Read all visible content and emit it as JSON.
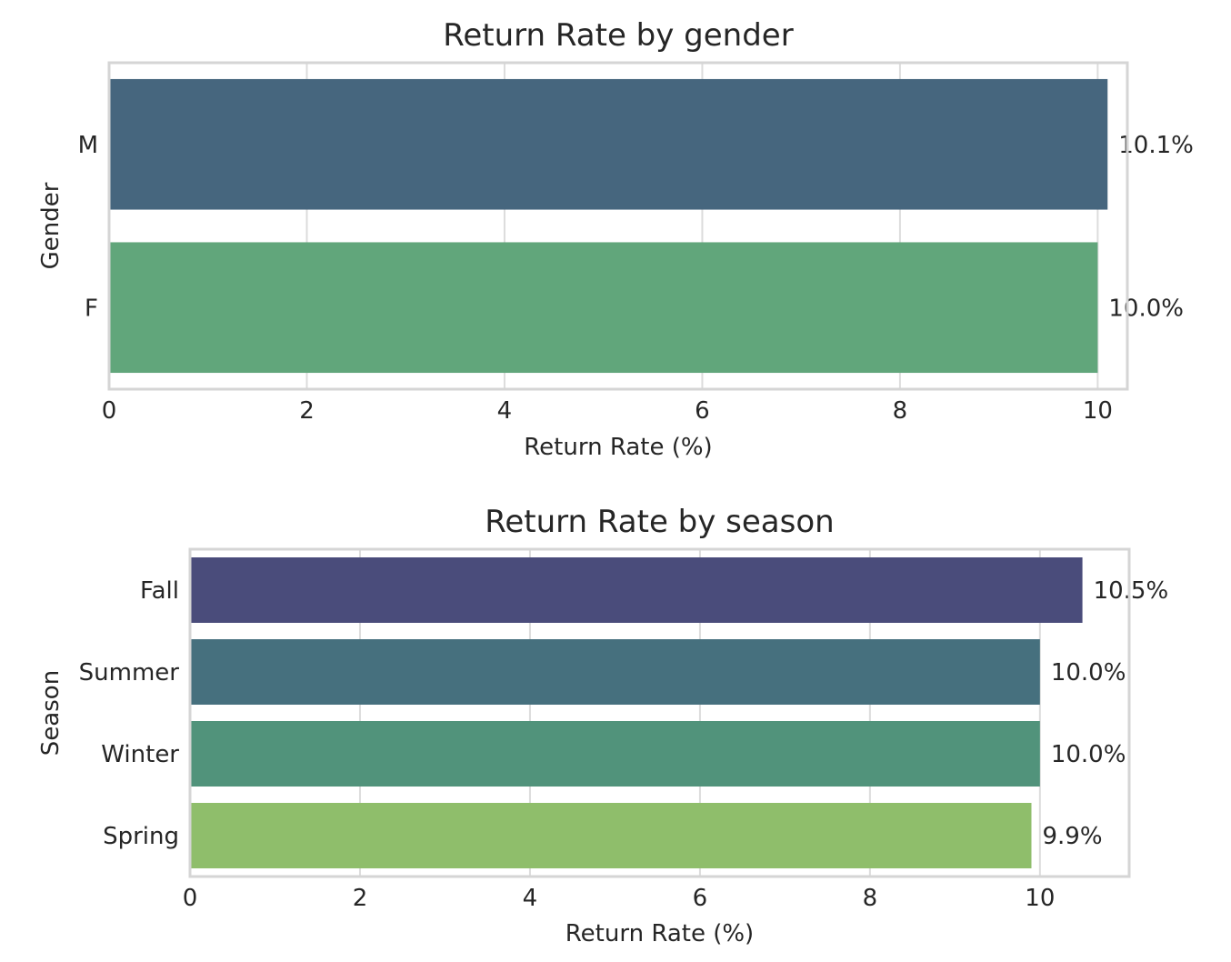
{
  "chart_data": [
    {
      "type": "bar",
      "orientation": "horizontal",
      "title": "Return Rate by gender",
      "xlabel": "Return Rate (%)",
      "ylabel": "Gender",
      "categories": [
        "M",
        "F"
      ],
      "values": [
        10.1,
        10.0
      ],
      "value_labels": [
        "10.1%",
        "10.0%"
      ],
      "colors": [
        "#46667e",
        "#61a67b"
      ],
      "xlim": [
        0,
        10.3
      ],
      "xticks": [
        0,
        2,
        4,
        6,
        8,
        10
      ],
      "grid": true,
      "legend": false
    },
    {
      "type": "bar",
      "orientation": "horizontal",
      "title": "Return Rate by season",
      "xlabel": "Return Rate (%)",
      "ylabel": "Season",
      "categories": [
        "Fall",
        "Summer",
        "Winter",
        "Spring"
      ],
      "values": [
        10.5,
        10.0,
        10.0,
        9.9
      ],
      "value_labels": [
        "10.5%",
        "10.0%",
        "10.0%",
        "9.9%"
      ],
      "colors": [
        "#4a4c7b",
        "#46707e",
        "#51937b",
        "#8fbe6b"
      ],
      "xlim": [
        0,
        11.05
      ],
      "xticks": [
        0,
        2,
        4,
        6,
        8,
        10
      ],
      "grid": true,
      "legend": false
    }
  ]
}
